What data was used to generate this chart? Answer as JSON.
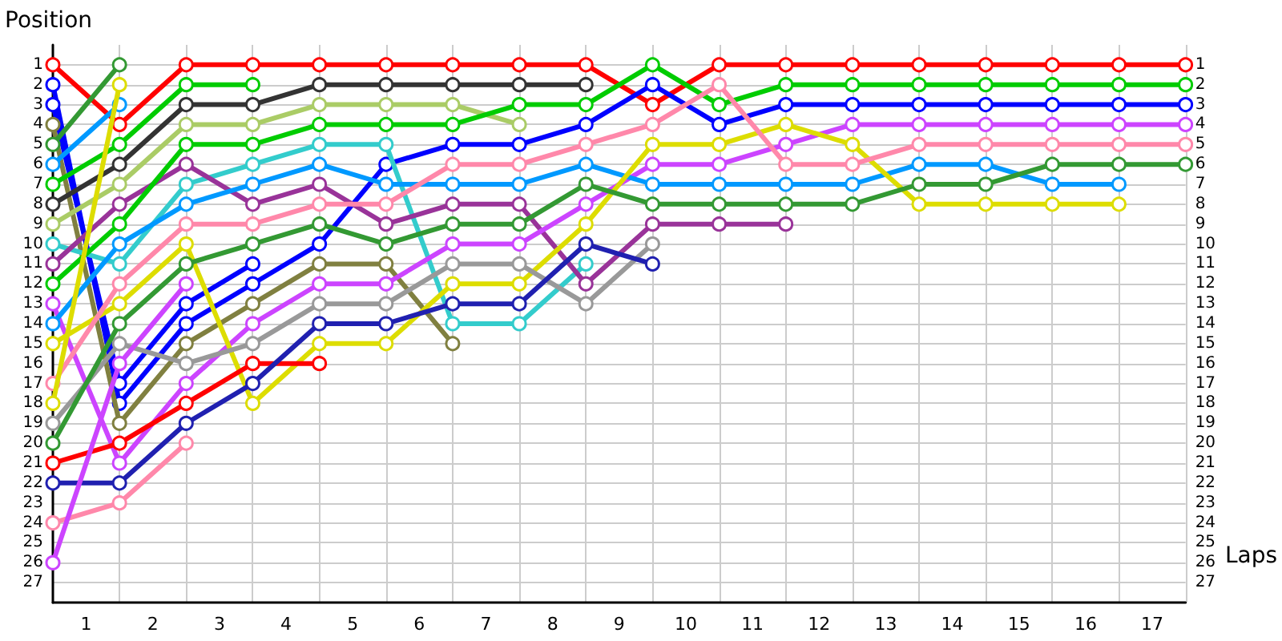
{
  "chart_data": {
    "type": "line",
    "ylabel": "Position",
    "xlabel": "Laps",
    "x": [
      0,
      1,
      2,
      3,
      4,
      5,
      6,
      7,
      8,
      9,
      10,
      11,
      12,
      13,
      14,
      15,
      16,
      17
    ],
    "xlim": [
      0,
      17
    ],
    "xticks": [
      {
        "value": 0.5,
        "label": "1"
      },
      {
        "value": 1.5,
        "label": "2"
      },
      {
        "value": 2.5,
        "label": "3"
      },
      {
        "value": 3.5,
        "label": "4"
      },
      {
        "value": 4.5,
        "label": "5"
      },
      {
        "value": 5.5,
        "label": "6"
      },
      {
        "value": 6.5,
        "label": "7"
      },
      {
        "value": 7.5,
        "label": "8"
      },
      {
        "value": 8.5,
        "label": "9"
      },
      {
        "value": 9.5,
        "label": "10"
      },
      {
        "value": 10.5,
        "label": "11"
      },
      {
        "value": 11.5,
        "label": "12"
      },
      {
        "value": 12.5,
        "label": "13"
      },
      {
        "value": 13.5,
        "label": "14"
      },
      {
        "value": 14.5,
        "label": "15"
      },
      {
        "value": 15.5,
        "label": "16"
      },
      {
        "value": 16.5,
        "label": "17"
      },
      {
        "value": 1,
        "label": null
      },
      {
        "value": 2,
        "label": null
      },
      {
        "value": 3,
        "label": null
      },
      {
        "value": 4,
        "label": null
      },
      {
        "value": 5,
        "label": null
      },
      {
        "value": 6,
        "label": null
      },
      {
        "value": 7,
        "label": null
      },
      {
        "value": 8,
        "label": null
      },
      {
        "value": 9,
        "label": null
      },
      {
        "value": 10,
        "label": null
      },
      {
        "value": 11,
        "label": null
      },
      {
        "value": 12,
        "label": null
      },
      {
        "value": 13,
        "label": null
      },
      {
        "value": 14,
        "label": null
      },
      {
        "value": 15,
        "label": null
      },
      {
        "value": 16,
        "label": null
      },
      {
        "value": 17,
        "label": null
      }
    ],
    "ylim": [
      28,
      0
    ],
    "yticks": [
      1,
      2,
      3,
      4,
      5,
      6,
      7,
      8,
      9,
      10,
      11,
      12,
      13,
      14,
      15,
      16,
      17,
      18,
      19,
      20,
      21,
      22,
      23,
      24,
      25,
      26,
      27
    ],
    "y2lim": [
      28,
      0
    ],
    "y2ticks": [
      1,
      2,
      3,
      4,
      5,
      6,
      7,
      8,
      9,
      10,
      11,
      12,
      13,
      14,
      15,
      16,
      17,
      18,
      19,
      20,
      21,
      22,
      23,
      24,
      25,
      26,
      27
    ],
    "grid": true,
    "marker": "circle",
    "line_style": "solid",
    "series": [
      {
        "color": "#ff0000",
        "values": [
          1,
          4,
          1,
          1,
          1,
          1,
          1,
          1,
          1,
          3,
          1,
          1,
          1,
          1,
          1,
          1,
          1,
          1
        ]
      },
      {
        "color": "#0000ff",
        "values": [
          2,
          18,
          14,
          12,
          10,
          6,
          5,
          5,
          4,
          2,
          4,
          3,
          3,
          3,
          3,
          3,
          3,
          3
        ]
      },
      {
        "color": "#0000ff",
        "values": [
          3,
          17,
          13,
          11,
          null,
          null,
          null,
          null,
          null,
          null,
          null,
          null,
          null,
          null,
          null,
          null,
          null,
          null
        ]
      },
      {
        "color": "#808040",
        "values": [
          4,
          19,
          15,
          13,
          11,
          11,
          15,
          null,
          null,
          null,
          null,
          null,
          null,
          null,
          null,
          null,
          null,
          null
        ]
      },
      {
        "color": "#339933",
        "values": [
          5,
          1,
          null,
          null,
          null,
          null,
          null,
          null,
          null,
          null,
          null,
          null,
          null,
          null,
          null,
          null,
          null,
          null
        ]
      },
      {
        "color": "#0099ff",
        "values": [
          6,
          3,
          null,
          null,
          null,
          null,
          null,
          null,
          null,
          null,
          null,
          null,
          null,
          null,
          null,
          null,
          null,
          null
        ]
      },
      {
        "color": "#00cc00",
        "values": [
          7,
          5,
          2,
          2,
          null,
          null,
          null,
          null,
          null,
          null,
          null,
          null,
          null,
          null,
          null,
          null,
          null,
          null
        ]
      },
      {
        "color": "#333333",
        "values": [
          8,
          6,
          3,
          3,
          2,
          2,
          2,
          2,
          2,
          null,
          null,
          null,
          null,
          null,
          null,
          null,
          null,
          null
        ]
      },
      {
        "color": "#aacc66",
        "values": [
          9,
          7,
          4,
          4,
          3,
          3,
          3,
          4,
          null,
          null,
          null,
          null,
          null,
          null,
          null,
          null,
          null,
          null
        ]
      },
      {
        "color": "#33cccc",
        "values": [
          10,
          11,
          7,
          6,
          5,
          5,
          14,
          14,
          11,
          null,
          null,
          null,
          null,
          null,
          null,
          null,
          null,
          null
        ]
      },
      {
        "color": "#993399",
        "values": [
          11,
          8,
          6,
          8,
          7,
          9,
          8,
          8,
          12,
          9,
          9,
          9,
          null,
          null,
          null,
          null,
          null,
          null
        ]
      },
      {
        "color": "#00cc00",
        "values": [
          12,
          9,
          5,
          5,
          4,
          4,
          4,
          3,
          3,
          1,
          3,
          2,
          2,
          2,
          2,
          2,
          2,
          2
        ]
      },
      {
        "color": "#cc44ff",
        "values": [
          13,
          21,
          17,
          14,
          12,
          12,
          10,
          10,
          8,
          6,
          6,
          5,
          4,
          4,
          4,
          4,
          4,
          4
        ]
      },
      {
        "color": "#0099ff",
        "values": [
          14,
          10,
          8,
          7,
          6,
          7,
          7,
          7,
          6,
          7,
          7,
          7,
          7,
          6,
          6,
          7,
          7,
          null
        ]
      },
      {
        "color": "#dddd00",
        "values": [
          15,
          13,
          10,
          18,
          15,
          15,
          12,
          12,
          9,
          5,
          5,
          4,
          5,
          8,
          8,
          8,
          8,
          null
        ]
      },
      {
        "color": "#ff88aa",
        "values": [
          17,
          12,
          9,
          9,
          8,
          8,
          6,
          6,
          5,
          4,
          2,
          6,
          6,
          5,
          5,
          5,
          5,
          5
        ]
      },
      {
        "color": "#dddd00",
        "values": [
          18,
          2,
          null,
          null,
          null,
          null,
          null,
          null,
          null,
          null,
          null,
          null,
          null,
          null,
          null,
          null,
          null,
          null
        ]
      },
      {
        "color": "#999999",
        "values": [
          19,
          15,
          16,
          15,
          13,
          13,
          11,
          11,
          13,
          10,
          null,
          null,
          null,
          null,
          null,
          null,
          null,
          null
        ]
      },
      {
        "color": "#339933",
        "values": [
          20,
          14,
          11,
          10,
          9,
          10,
          9,
          9,
          7,
          8,
          8,
          8,
          8,
          7,
          7,
          6,
          6,
          6
        ]
      },
      {
        "color": "#ff0000",
        "values": [
          21,
          20,
          18,
          16,
          16,
          null,
          null,
          null,
          null,
          null,
          null,
          null,
          null,
          null,
          null,
          null,
          null,
          null
        ]
      },
      {
        "color": "#2020b0",
        "values": [
          22,
          22,
          19,
          17,
          14,
          14,
          13,
          13,
          10,
          11,
          null,
          null,
          null,
          null,
          null,
          null,
          null,
          null
        ]
      },
      {
        "color": "#ff88aa",
        "values": [
          24,
          23,
          20,
          null,
          null,
          null,
          null,
          null,
          null,
          null,
          null,
          null,
          null,
          null,
          null,
          null,
          null,
          null
        ]
      },
      {
        "color": "#cc44ff",
        "values": [
          26,
          16,
          12,
          null,
          null,
          null,
          null,
          null,
          null,
          null,
          null,
          null,
          null,
          null,
          null,
          null,
          null,
          null
        ]
      }
    ]
  }
}
